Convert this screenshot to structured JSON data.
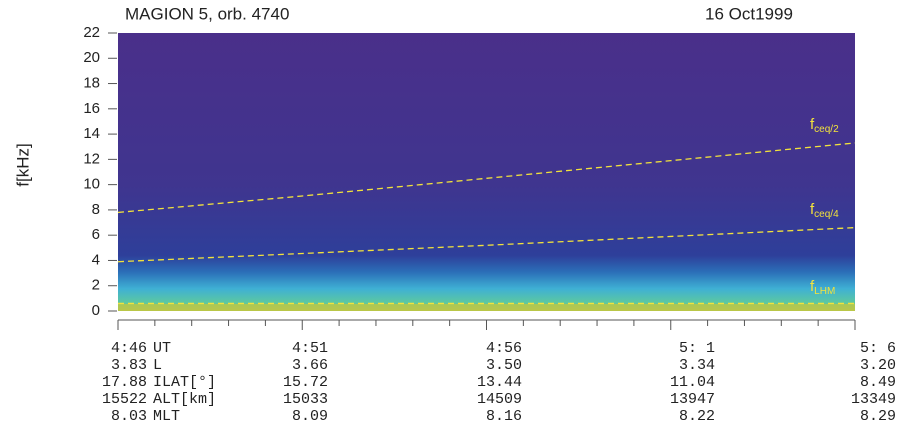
{
  "chart_data": {
    "type": "spectrogram",
    "title": "MAGION 5, orb. 4740",
    "date": "16 Oct1999",
    "ylabel": "f[kHz]",
    "ylim": [
      0,
      22
    ],
    "yticks": [
      0,
      2,
      4,
      6,
      8,
      10,
      12,
      14,
      16,
      18,
      20,
      22
    ],
    "series": [
      {
        "name": "f",
        "subscript": "ceq/2",
        "color": "#f2e23c",
        "values": [
          7.8,
          9.1,
          10.5,
          11.9,
          13.3
        ]
      },
      {
        "name": "f",
        "subscript": "ceq/4",
        "color": "#f2e23c",
        "values": [
          3.9,
          4.55,
          5.2,
          5.9,
          6.6
        ]
      },
      {
        "name": "f",
        "subscript": "LHM",
        "color": "#f2e23c",
        "values": [
          0.6,
          0.6,
          0.6,
          0.6,
          0.6
        ]
      }
    ],
    "ephemeris": [
      {
        "label": "UT",
        "values": [
          "4:46",
          "4:51",
          "4:56",
          "5: 1",
          "5: 6"
        ]
      },
      {
        "label": "L",
        "values": [
          "3.83",
          "3.66",
          "3.50",
          "3.34",
          "3.20"
        ]
      },
      {
        "label": "ILAT[°]",
        "values": [
          "17.88",
          "15.72",
          "13.44",
          "11.04",
          "8.49"
        ]
      },
      {
        "label": "ALT[km]",
        "values": [
          "15522",
          "15033",
          "14509",
          "13947",
          "13349"
        ]
      },
      {
        "label": "MLT",
        "values": [
          "8.03",
          "8.09",
          "8.16",
          "8.22",
          "8.29"
        ]
      }
    ]
  }
}
